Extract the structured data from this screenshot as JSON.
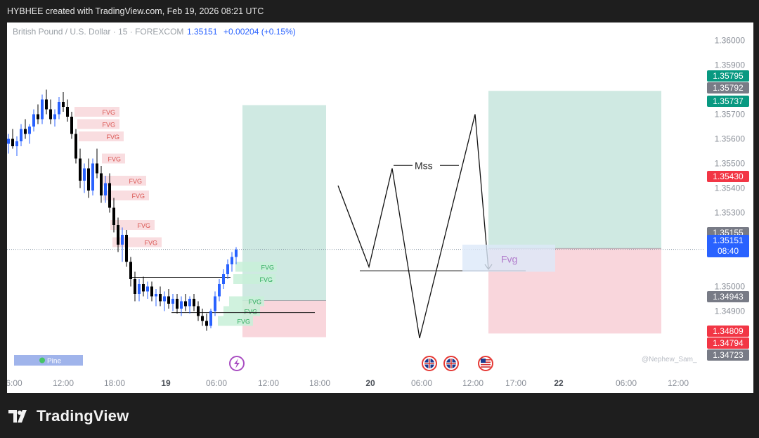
{
  "header": {
    "text": "HYBHEE created with TradingView.com, Feb 19, 2026 08:21 UTC"
  },
  "legend": {
    "symbol": "British Pound / U.S. Dollar · 15 · FOREXCOM",
    "last": "1.35151",
    "change": "+0.00204 (+0.15%)"
  },
  "watermark": "@Nephew_Sam_",
  "pine_label": "Pine",
  "brand": "TradingView",
  "colors": {
    "up_candle": "#2962ff",
    "down_candle": "#000000",
    "fvg_bear": "#f8d7da",
    "fvg_bull": "#c8f0d8",
    "profit_zone": "#cfe9e2",
    "loss_zone": "#f9d6dc",
    "price_line": "#7a8b99"
  },
  "chart_data": {
    "type": "candlestick",
    "symbol": "British Pound / U.S. Dollar",
    "timeframe": "15",
    "exchange": "FOREXCOM",
    "y_axis": {
      "range": [
        1.3465,
        1.3605
      ],
      "ticks": [
        "1.36000",
        "1.35900",
        "1.35700",
        "1.35600",
        "1.35500",
        "1.35400",
        "1.35300",
        "1.35000",
        "1.34900"
      ]
    },
    "x_axis": {
      "ticks": [
        {
          "label": "6:00",
          "bold": false
        },
        {
          "label": "12:00",
          "bold": false
        },
        {
          "label": "18:00",
          "bold": false
        },
        {
          "label": "19",
          "bold": true
        },
        {
          "label": "06:00",
          "bold": false
        },
        {
          "label": "12:00",
          "bold": false
        },
        {
          "label": "18:00",
          "bold": false
        },
        {
          "label": "20",
          "bold": true
        },
        {
          "label": "06:00",
          "bold": false
        },
        {
          "label": "12:00",
          "bold": false
        },
        {
          "label": "17:00",
          "bold": false
        },
        {
          "label": "22",
          "bold": true
        },
        {
          "label": "06:00",
          "bold": false
        },
        {
          "label": "12:00",
          "bold": false
        }
      ]
    },
    "price_badges": [
      {
        "label": "1.35795",
        "price": 1.35795,
        "color": "#089981"
      },
      {
        "label": "1.35792",
        "price": 1.35792,
        "color": "#787b86"
      },
      {
        "label": "1.35737",
        "price": 1.35737,
        "color": "#089981"
      },
      {
        "label": "1.35430",
        "price": 1.3543,
        "color": "#f23645"
      },
      {
        "label": "1.35155",
        "price": 1.35155,
        "color": "#787b86"
      },
      {
        "label": "1.35151",
        "sub": "08:40",
        "price": 1.35151,
        "color": "#2962ff"
      },
      {
        "label": "1.34943",
        "price": 1.34943,
        "color": "#787b86"
      },
      {
        "label": "1.34809",
        "price": 1.34809,
        "color": "#f23645"
      },
      {
        "label": "1.34794",
        "price": 1.34794,
        "color": "#f23645"
      },
      {
        "label": "1.34723",
        "price": 1.34723,
        "color": "#787b86"
      }
    ],
    "fvg_label": "FVG",
    "fvg_bearish_zones": [
      {
        "price": 1.3571
      },
      {
        "price": 1.3566
      },
      {
        "price": 1.3561
      },
      {
        "price": 1.3552
      },
      {
        "price": 1.3543
      },
      {
        "price": 1.3537
      },
      {
        "price": 1.3525
      },
      {
        "price": 1.3518
      }
    ],
    "fvg_bullish_zones": [
      {
        "price": 1.3508
      },
      {
        "price": 1.3503
      },
      {
        "price": 1.3494
      },
      {
        "price": 1.349
      },
      {
        "price": 1.3486
      }
    ],
    "annotations": [
      {
        "text": "Mss"
      },
      {
        "text": "Fvg"
      }
    ],
    "positions": [
      {
        "type": "long",
        "target": 1.35737,
        "entry": 1.34943,
        "stop": 1.34794
      },
      {
        "type": "long",
        "target": 1.35795,
        "entry": 1.35155,
        "stop": 1.34809
      }
    ],
    "current_price": 1.35151,
    "candles": [
      [
        1.3558,
        1.3562,
        1.3554,
        1.356
      ],
      [
        1.356,
        1.3564,
        1.3556,
        1.3557
      ],
      [
        1.3557,
        1.3561,
        1.3553,
        1.3559
      ],
      [
        1.3559,
        1.3566,
        1.3557,
        1.3564
      ],
      [
        1.3564,
        1.3568,
        1.356,
        1.3562
      ],
      [
        1.3562,
        1.3566,
        1.3558,
        1.3565
      ],
      [
        1.3565,
        1.3572,
        1.3563,
        1.357
      ],
      [
        1.357,
        1.3574,
        1.3566,
        1.3568
      ],
      [
        1.3568,
        1.3578,
        1.3566,
        1.3576
      ],
      [
        1.3576,
        1.358,
        1.357,
        1.3572
      ],
      [
        1.3572,
        1.3576,
        1.3566,
        1.3568
      ],
      [
        1.3568,
        1.3572,
        1.3565,
        1.357
      ],
      [
        1.357,
        1.3577,
        1.3568,
        1.3575
      ],
      [
        1.3575,
        1.3579,
        1.3571,
        1.3573
      ],
      [
        1.3573,
        1.3576,
        1.3567,
        1.3569
      ],
      [
        1.3569,
        1.3571,
        1.356,
        1.3562
      ],
      [
        1.3562,
        1.3564,
        1.355,
        1.3552
      ],
      [
        1.3552,
        1.3556,
        1.354,
        1.3543
      ],
      [
        1.3543,
        1.355,
        1.3538,
        1.3548
      ],
      [
        1.3548,
        1.3552,
        1.3536,
        1.3539
      ],
      [
        1.3539,
        1.3552,
        1.3537,
        1.355
      ],
      [
        1.355,
        1.3556,
        1.3544,
        1.3546
      ],
      [
        1.3546,
        1.3549,
        1.3534,
        1.3537
      ],
      [
        1.3537,
        1.3545,
        1.3534,
        1.3542
      ],
      [
        1.3542,
        1.3546,
        1.353,
        1.3532
      ],
      [
        1.3532,
        1.3536,
        1.3522,
        1.3525
      ],
      [
        1.3525,
        1.3528,
        1.3514,
        1.3517
      ],
      [
        1.3517,
        1.3524,
        1.351,
        1.3521
      ],
      [
        1.3521,
        1.3523,
        1.3508,
        1.351
      ],
      [
        1.351,
        1.3512,
        1.35,
        1.3503
      ],
      [
        1.3503,
        1.3506,
        1.3494,
        1.3497
      ],
      [
        1.3497,
        1.3503,
        1.3494,
        1.3501
      ],
      [
        1.3501,
        1.3504,
        1.3496,
        1.3498
      ],
      [
        1.3498,
        1.3502,
        1.3495,
        1.35
      ],
      [
        1.35,
        1.3502,
        1.3494,
        1.3496
      ],
      [
        1.3496,
        1.3499,
        1.3492,
        1.3497
      ],
      [
        1.3497,
        1.35,
        1.3492,
        1.3494
      ],
      [
        1.3494,
        1.3498,
        1.349,
        1.3496
      ],
      [
        1.3496,
        1.3499,
        1.3491,
        1.3493
      ],
      [
        1.3493,
        1.3497,
        1.349,
        1.3495
      ],
      [
        1.3495,
        1.3497,
        1.3489,
        1.3491
      ],
      [
        1.3491,
        1.3496,
        1.3488,
        1.3494
      ],
      [
        1.3494,
        1.3497,
        1.349,
        1.3492
      ],
      [
        1.3492,
        1.3496,
        1.3489,
        1.3495
      ],
      [
        1.3495,
        1.3497,
        1.349,
        1.3492
      ],
      [
        1.3492,
        1.3494,
        1.3486,
        1.3488
      ],
      [
        1.3488,
        1.3491,
        1.3484,
        1.3486
      ],
      [
        1.3486,
        1.3489,
        1.3482,
        1.3484
      ],
      [
        1.3484,
        1.3491,
        1.3483,
        1.349
      ],
      [
        1.349,
        1.3498,
        1.3488,
        1.3496
      ],
      [
        1.3496,
        1.3503,
        1.3494,
        1.3501
      ],
      [
        1.3501,
        1.3507,
        1.3499,
        1.3505
      ],
      [
        1.3505,
        1.3511,
        1.3503,
        1.3509
      ],
      [
        1.3509,
        1.3514,
        1.3506,
        1.3512
      ],
      [
        1.3512,
        1.3516,
        1.3509,
        1.3515
      ]
    ],
    "projection_path": [
      [
        1.3541,
        0
      ],
      [
        1.3508,
        1
      ],
      [
        1.3548,
        2
      ],
      [
        1.3479,
        3
      ],
      [
        1.357,
        4
      ],
      [
        1.3507,
        5
      ]
    ]
  }
}
